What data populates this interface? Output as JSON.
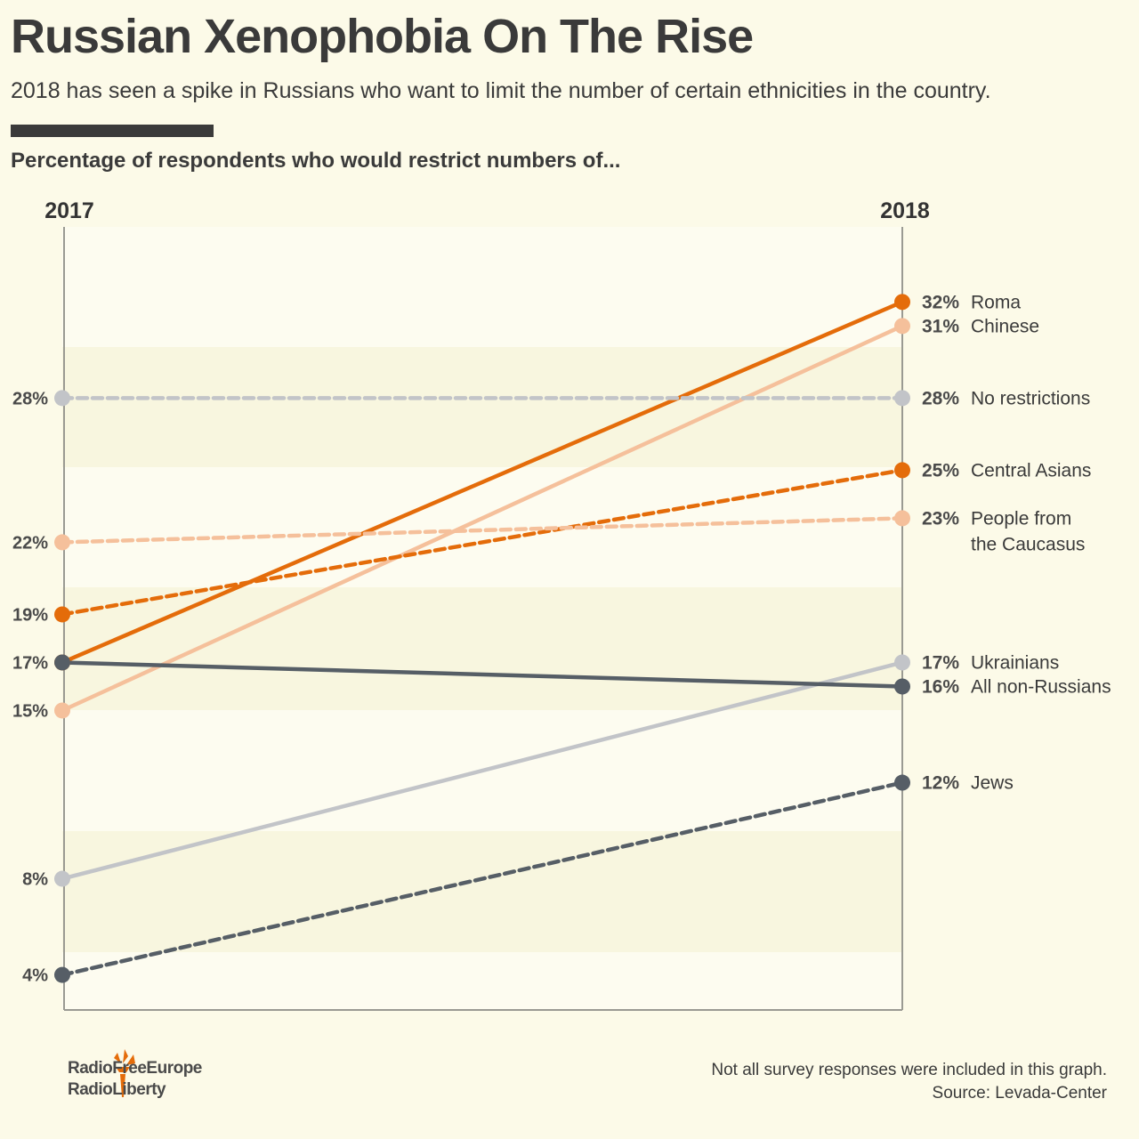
{
  "title": "Russian Xenophobia On The Rise",
  "subtitle": "2018 has seen a spike in Russians who want to limit the number of certain ethnicities in the country.",
  "heading": "Percentage of respondents who would restrict numbers of...",
  "logo": {
    "line1": "RadioFreeEurope",
    "line2": "RadioLiberty"
  },
  "footnote": "Not all survey responses were included in this graph.",
  "source": "Source: Levada-Center",
  "chart_data": {
    "type": "line",
    "title": "Percentage of respondents who would restrict numbers of...",
    "x": [
      "2017",
      "2018"
    ],
    "ylim": [
      0,
      35
    ],
    "left_labels": [
      "28%",
      "22%",
      "19%",
      "17%",
      "15%",
      "8%",
      "4%"
    ],
    "series": [
      {
        "name": "Roma",
        "values": [
          17,
          32
        ],
        "color": "#e46c0a",
        "dashed": false,
        "label_lines": [
          "Roma"
        ],
        "end_label": "32%"
      },
      {
        "name": "Chinese",
        "values": [
          15,
          31
        ],
        "color": "#f5c09b",
        "dashed": false,
        "label_lines": [
          "Chinese"
        ],
        "end_label": "31%"
      },
      {
        "name": "No restrictions",
        "values": [
          28,
          28
        ],
        "color": "#c2c4c8",
        "dashed": true,
        "label_lines": [
          "No restrictions"
        ],
        "end_label": "28%"
      },
      {
        "name": "Central Asians",
        "values": [
          19,
          25
        ],
        "color": "#e46c0a",
        "dashed": true,
        "label_lines": [
          "Central Asians"
        ],
        "end_label": "25%"
      },
      {
        "name": "People from the Caucasus",
        "values": [
          22,
          23
        ],
        "color": "#f5c09b",
        "dashed": true,
        "label_lines": [
          "People from",
          "the Caucasus"
        ],
        "end_label": "23%"
      },
      {
        "name": "Ukrainians",
        "values": [
          8,
          17
        ],
        "color": "#c2c4c8",
        "dashed": false,
        "label_lines": [
          "Ukrainians"
        ],
        "end_label": "17%"
      },
      {
        "name": "All non-Russians",
        "values": [
          17,
          16
        ],
        "color": "#565e66",
        "dashed": false,
        "label_lines": [
          "All non-Russians"
        ],
        "end_label": "16%"
      },
      {
        "name": "Jews",
        "values": [
          4,
          12
        ],
        "color": "#565e66",
        "dashed": true,
        "label_lines": [
          "Jews"
        ],
        "end_label": "12%"
      }
    ]
  }
}
